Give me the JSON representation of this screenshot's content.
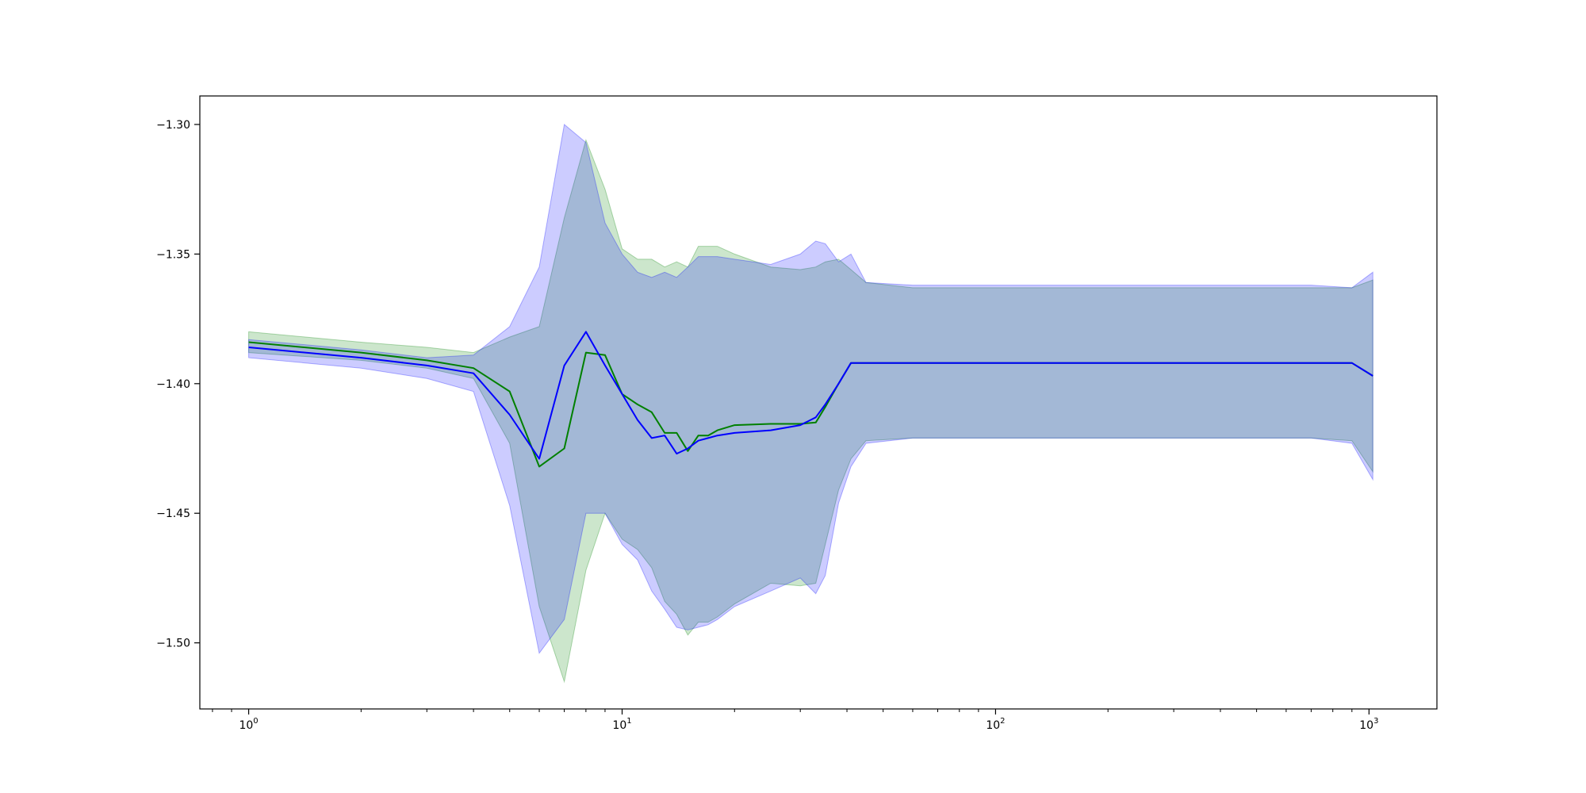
{
  "chart_data": {
    "type": "line",
    "xscale": "log",
    "xlim": [
      0.74,
      1520
    ],
    "ylim": [
      -1.5255,
      -1.289
    ],
    "grid": false,
    "legend": "none",
    "x_ticks": [
      {
        "value": 1,
        "base": "10",
        "exp": "0"
      },
      {
        "value": 10,
        "base": "10",
        "exp": "1"
      },
      {
        "value": 100,
        "base": "10",
        "exp": "2"
      },
      {
        "value": 1000,
        "base": "10",
        "exp": "3"
      }
    ],
    "y_ticks": [
      {
        "value": -1.3,
        "label": "−1.30"
      },
      {
        "value": -1.35,
        "label": "−1.35"
      },
      {
        "value": -1.4,
        "label": "−1.40"
      },
      {
        "value": -1.45,
        "label": "−1.45"
      },
      {
        "value": -1.5,
        "label": "−1.50"
      }
    ],
    "series": [
      {
        "color": "#008000",
        "band_color": "#008000",
        "band_opacity": 0.2,
        "x": [
          1,
          2,
          3,
          4,
          5,
          6,
          7,
          8,
          9,
          10,
          11,
          12,
          13,
          14,
          15,
          16,
          17,
          18,
          20,
          25,
          30,
          33,
          35,
          38,
          41,
          45,
          60,
          100,
          300,
          700,
          900,
          1024
        ],
        "y": [
          -1.384,
          -1.388,
          -1.391,
          -1.394,
          -1.403,
          -1.432,
          -1.425,
          -1.388,
          -1.389,
          -1.404,
          -1.408,
          -1.411,
          -1.419,
          -1.419,
          -1.426,
          -1.42,
          -1.42,
          -1.418,
          -1.416,
          -1.4155,
          -1.4155,
          -1.415,
          -1.409,
          -1.4,
          -1.392,
          -1.392,
          -1.392,
          -1.392,
          -1.392,
          -1.392,
          -1.392,
          -1.397
        ],
        "upper": [
          -1.38,
          -1.384,
          -1.386,
          -1.388,
          -1.382,
          -1.378,
          -1.336,
          -1.306,
          -1.325,
          -1.348,
          -1.352,
          -1.352,
          -1.355,
          -1.353,
          -1.355,
          -1.347,
          -1.347,
          -1.347,
          -1.35,
          -1.355,
          -1.356,
          -1.355,
          -1.353,
          -1.352,
          -1.356,
          -1.361,
          -1.363,
          -1.363,
          -1.363,
          -1.363,
          -1.363,
          -1.36
        ],
        "lower": [
          -1.388,
          -1.391,
          -1.394,
          -1.398,
          -1.423,
          -1.486,
          -1.515,
          -1.472,
          -1.45,
          -1.46,
          -1.464,
          -1.471,
          -1.484,
          -1.489,
          -1.497,
          -1.492,
          -1.492,
          -1.49,
          -1.485,
          -1.477,
          -1.478,
          -1.477,
          -1.462,
          -1.441,
          -1.429,
          -1.422,
          -1.421,
          -1.421,
          -1.421,
          -1.421,
          -1.422,
          -1.434
        ]
      },
      {
        "color": "#0000ff",
        "band_color": "#0000ff",
        "band_opacity": 0.2,
        "x": [
          1,
          2,
          3,
          4,
          5,
          6,
          7,
          8,
          9,
          10,
          11,
          12,
          13,
          14,
          15,
          16,
          17,
          18,
          20,
          25,
          30,
          33,
          35,
          38,
          41,
          45,
          60,
          100,
          300,
          700,
          900,
          1024
        ],
        "y": [
          -1.386,
          -1.39,
          -1.393,
          -1.396,
          -1.412,
          -1.429,
          -1.393,
          -1.38,
          -1.393,
          -1.404,
          -1.414,
          -1.421,
          -1.42,
          -1.427,
          -1.425,
          -1.422,
          -1.421,
          -1.42,
          -1.419,
          -1.418,
          -1.416,
          -1.413,
          -1.408,
          -1.4,
          -1.392,
          -1.392,
          -1.392,
          -1.392,
          -1.392,
          -1.392,
          -1.392,
          -1.397
        ],
        "upper": [
          -1.383,
          -1.387,
          -1.39,
          -1.389,
          -1.378,
          -1.355,
          -1.3,
          -1.307,
          -1.338,
          -1.35,
          -1.357,
          -1.359,
          -1.357,
          -1.359,
          -1.355,
          -1.351,
          -1.351,
          -1.351,
          -1.352,
          -1.354,
          -1.35,
          -1.345,
          -1.346,
          -1.353,
          -1.35,
          -1.361,
          -1.362,
          -1.362,
          -1.362,
          -1.362,
          -1.363,
          -1.357
        ],
        "lower": [
          -1.39,
          -1.394,
          -1.398,
          -1.403,
          -1.447,
          -1.504,
          -1.491,
          -1.45,
          -1.45,
          -1.462,
          -1.468,
          -1.48,
          -1.487,
          -1.494,
          -1.495,
          -1.494,
          -1.493,
          -1.491,
          -1.486,
          -1.48,
          -1.475,
          -1.481,
          -1.474,
          -1.446,
          -1.432,
          -1.423,
          -1.421,
          -1.421,
          -1.421,
          -1.421,
          -1.423,
          -1.437
        ]
      }
    ]
  }
}
